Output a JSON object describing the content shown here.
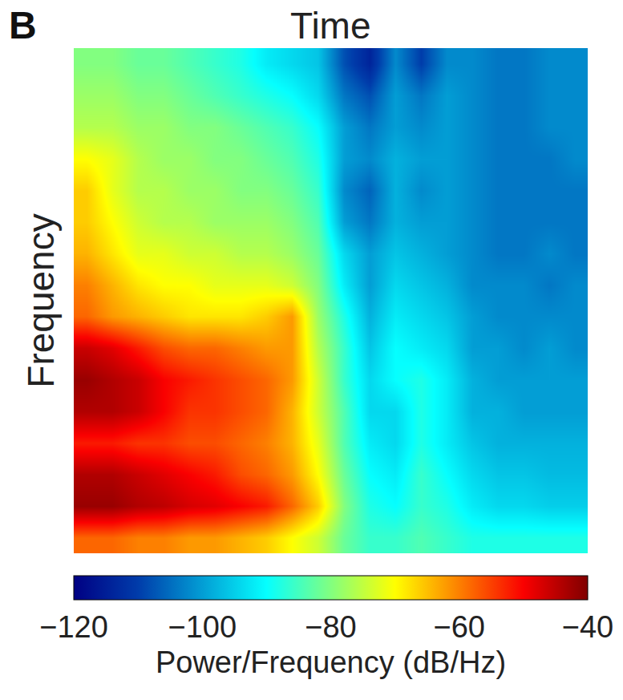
{
  "chart_data": {
    "type": "heatmap",
    "panel_label": "B",
    "title": "Time",
    "y_label": "Frequency",
    "tick_labels": false,
    "cells": [
      [
        -58,
        -58,
        -60,
        -60,
        -62,
        -62,
        -64,
        -66,
        -70,
        -74,
        -82,
        -86,
        -86,
        -84,
        -86,
        -88,
        -88,
        -88,
        -88,
        -88
      ],
      [
        -42,
        -42,
        -44,
        -45,
        -47,
        -48,
        -50,
        -52,
        -58,
        -66,
        -80,
        -88,
        -90,
        -86,
        -88,
        -92,
        -94,
        -94,
        -95,
        -95
      ],
      [
        -44,
        -44,
        -46,
        -48,
        -50,
        -52,
        -56,
        -58,
        -62,
        -70,
        -82,
        -90,
        -92,
        -86,
        -90,
        -94,
        -96,
        -96,
        -97,
        -97
      ],
      [
        -52,
        -52,
        -54,
        -54,
        -56,
        -56,
        -58,
        -60,
        -64,
        -72,
        -84,
        -92,
        -94,
        -88,
        -92,
        -96,
        -98,
        -98,
        -98,
        -98
      ],
      [
        -44,
        -44,
        -46,
        -50,
        -54,
        -54,
        -56,
        -58,
        -64,
        -74,
        -84,
        -94,
        -94,
        -88,
        -92,
        -98,
        -98,
        -100,
        -100,
        -100
      ],
      [
        -42,
        -44,
        -46,
        -50,
        -52,
        -54,
        -56,
        -58,
        -62,
        -74,
        -86,
        -94,
        -90,
        -88,
        -92,
        -98,
        -100,
        -100,
        -100,
        -100
      ],
      [
        -46,
        -48,
        -52,
        -56,
        -58,
        -58,
        -60,
        -62,
        -62,
        -76,
        -86,
        -96,
        -90,
        -92,
        -94,
        -100,
        -100,
        -102,
        -100,
        -102
      ],
      [
        -58,
        -62,
        -64,
        -66,
        -68,
        -68,
        -68,
        -66,
        -62,
        -78,
        -88,
        -98,
        -92,
        -94,
        -96,
        -100,
        -102,
        -102,
        -102,
        -102
      ],
      [
        -60,
        -64,
        -68,
        -70,
        -70,
        -72,
        -72,
        -72,
        -74,
        -80,
        -92,
        -100,
        -94,
        -96,
        -98,
        -102,
        -102,
        -102,
        -104,
        -102
      ],
      [
        -64,
        -68,
        -72,
        -72,
        -74,
        -74,
        -76,
        -76,
        -78,
        -82,
        -94,
        -100,
        -96,
        -98,
        -100,
        -102,
        -104,
        -104,
        -102,
        -104
      ],
      [
        -66,
        -70,
        -74,
        -76,
        -76,
        -78,
        -78,
        -78,
        -80,
        -84,
        -100,
        -104,
        -98,
        -100,
        -100,
        -102,
        -104,
        -104,
        -104,
        -104
      ],
      [
        -66,
        -72,
        -76,
        -76,
        -78,
        -78,
        -80,
        -80,
        -82,
        -86,
        -102,
        -106,
        -98,
        -102,
        -100,
        -102,
        -104,
        -104,
        -104,
        -104
      ],
      [
        -70,
        -72,
        -76,
        -78,
        -78,
        -80,
        -80,
        -82,
        -84,
        -88,
        -100,
        -102,
        -98,
        -100,
        -100,
        -102,
        -104,
        -104,
        -104,
        -102
      ],
      [
        -76,
        -76,
        -78,
        -78,
        -80,
        -80,
        -82,
        -84,
        -86,
        -90,
        -100,
        -104,
        -100,
        -102,
        -100,
        -102,
        -104,
        -104,
        -102,
        -102
      ],
      [
        -78,
        -78,
        -80,
        -80,
        -82,
        -84,
        -86,
        -88,
        -90,
        -94,
        -104,
        -108,
        -100,
        -104,
        -100,
        -102,
        -104,
        -104,
        -102,
        -102
      ],
      [
        -80,
        -80,
        -82,
        -82,
        -84,
        -86,
        -88,
        -92,
        -94,
        -96,
        -108,
        -114,
        -102,
        -110,
        -102,
        -102,
        -104,
        -104,
        -102,
        -102
      ]
    ],
    "colorbar": {
      "title": "Power/Frequency (dB/Hz)",
      "range": [
        -120,
        -40
      ],
      "ticks": [
        {
          "value": -120,
          "label": "−120"
        },
        {
          "value": -100,
          "label": "−100"
        },
        {
          "value": -80,
          "label": "−80"
        },
        {
          "value": -60,
          "label": "−60"
        },
        {
          "value": -40,
          "label": "−40"
        }
      ]
    }
  }
}
